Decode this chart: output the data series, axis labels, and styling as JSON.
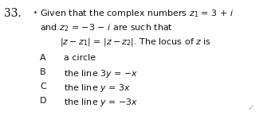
{
  "background_color": "#ffffff",
  "question_number": "33.",
  "bullet": "•",
  "line1": "Given that the complex numbers $z_1$ = 3 + $i$",
  "line2": "and $z_2$ = −3 − $i$ are such that",
  "line3": "$|z - z_1|$ = $|z - z_2|$. The locus of $z$ is",
  "optA_label": "A",
  "optA_text": "a circle",
  "optB_label": "B",
  "optB_text": "the line 3$y$ = −$x$",
  "optC_label": "C",
  "optC_text": "the line $y$ = 3$x$",
  "optD_label": "D",
  "optD_text": "the line $y$ = −3$x$",
  "font_size_main": 8.0,
  "font_size_num": 10.0,
  "text_color": "#111111",
  "tick_color": "#999999"
}
